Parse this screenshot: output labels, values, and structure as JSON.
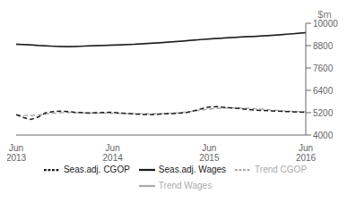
{
  "chart_data": {
    "type": "line",
    "ylabel": "$m",
    "ylim": [
      4000,
      10000
    ],
    "yticks": [
      4000,
      5200,
      6400,
      7600,
      8800,
      10000
    ],
    "categories": [
      "Jun\n2013",
      null,
      null,
      null,
      null,
      null,
      null,
      null,
      null,
      null,
      null,
      null,
      null,
      "Jun\n2014",
      null,
      null,
      null,
      null,
      null,
      null,
      null,
      null,
      null,
      null,
      null,
      null,
      "Jun\n2015",
      null,
      null,
      null,
      null,
      null,
      null,
      null,
      null,
      null,
      null,
      null,
      null,
      "Jun\n2016"
    ],
    "series": [
      {
        "name": "Trend Wages",
        "color": "#aaaaaa",
        "line_style": "solid",
        "values": [
          8870,
          8860,
          8835,
          8805,
          8780,
          8760,
          8748,
          8748,
          8758,
          8772,
          8787,
          8803,
          8818,
          8833,
          8848,
          8863,
          8882,
          8903,
          8927,
          8952,
          8977,
          9002,
          9030,
          9060,
          9090,
          9120,
          9150,
          9178,
          9207,
          9233,
          9253,
          9273,
          9293,
          9313,
          9338,
          9362,
          9388,
          9423,
          9462,
          9500
        ]
      },
      {
        "name": "Seas.adj. Wages",
        "color": "#1a1a1a",
        "line_style": "solid",
        "values": [
          8870,
          8860,
          8840,
          8810,
          8790,
          8770,
          8755,
          8745,
          8755,
          8770,
          8785,
          8800,
          8810,
          8825,
          8840,
          8855,
          8870,
          8895,
          8920,
          8945,
          8970,
          9000,
          9030,
          9065,
          9100,
          9130,
          9160,
          9185,
          9210,
          9235,
          9255,
          9275,
          9295,
          9315,
          9340,
          9365,
          9395,
          9430,
          9465,
          9500
        ]
      },
      {
        "name": "Trend CGOP",
        "color": "#aaaaaa",
        "line_style": "dashed",
        "values": [
          5075,
          5055,
          5045,
          5075,
          5128,
          5170,
          5198,
          5210,
          5205,
          5193,
          5183,
          5178,
          5173,
          5168,
          5163,
          5153,
          5143,
          5138,
          5138,
          5143,
          5153,
          5168,
          5198,
          5240,
          5290,
          5342,
          5390,
          5430,
          5450,
          5460,
          5453,
          5438,
          5418,
          5388,
          5358,
          5328,
          5298,
          5273,
          5258,
          5248
        ]
      },
      {
        "name": "Seas.adj. CGOP",
        "color": "#1a1a1a",
        "line_style": "dashed",
        "values": [
          5100,
          4940,
          4840,
          4970,
          5200,
          5255,
          5285,
          5260,
          5215,
          5195,
          5180,
          5200,
          5215,
          5225,
          5185,
          5160,
          5130,
          5108,
          5095,
          5115,
          5140,
          5155,
          5175,
          5210,
          5310,
          5420,
          5505,
          5525,
          5490,
          5455,
          5425,
          5385,
          5345,
          5325,
          5305,
          5285,
          5265,
          5255,
          5238,
          5225
        ]
      }
    ],
    "grid": false,
    "legend": "bottom"
  }
}
